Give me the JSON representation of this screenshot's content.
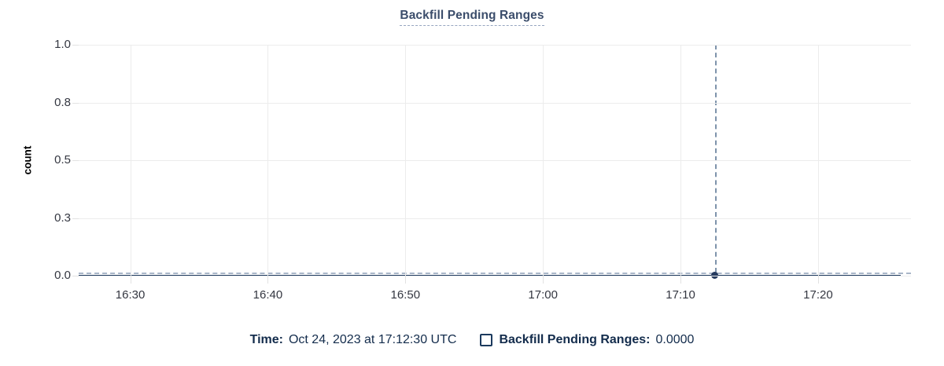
{
  "chart_data": {
    "type": "line",
    "title": "Backfill Pending Ranges",
    "ylabel": "count",
    "ylim": [
      0,
      1
    ],
    "grid": true,
    "legend_position": "bottom",
    "y_ticks": [
      {
        "value": 1.0,
        "label": "1.0"
      },
      {
        "value": 0.75,
        "label": "0.8"
      },
      {
        "value": 0.5,
        "label": "0.5"
      },
      {
        "value": 0.25,
        "label": "0.3"
      },
      {
        "value": 0.0,
        "label": "0.0"
      }
    ],
    "x_ticks": [
      {
        "time": "16:30",
        "label": "16:30"
      },
      {
        "time": "16:40",
        "label": "16:40"
      },
      {
        "time": "16:50",
        "label": "16:50"
      },
      {
        "time": "17:00",
        "label": "17:00"
      },
      {
        "time": "17:10",
        "label": "17:10"
      },
      {
        "time": "17:20",
        "label": "17:20"
      }
    ],
    "x_domain": [
      "16:26:15",
      "17:26:45"
    ],
    "series": [
      {
        "name": "Backfill Pending Ranges",
        "constant_value": 0.0,
        "start": "16:26:15",
        "end": "17:26:00",
        "color": "#1e3a5f"
      }
    ],
    "crosshair": {
      "time": "17:12:30",
      "value": 0.0
    }
  },
  "title": "Backfill Pending Ranges",
  "ylabel": "count",
  "legend": {
    "time_label": "Time:",
    "time_value": "Oct 24, 2023 at 17:12:30 UTC",
    "series_label": "Backfill Pending Ranges:",
    "series_value": "0.0000"
  },
  "colors": {
    "title": "#3b4d6b",
    "series_line": "#1e3a5f",
    "highlight_dot": "#253a5e",
    "crosshair_vertical": "#7e93ab",
    "crosshair_horizontal": "#a9b6c8",
    "gridline": "#ececec",
    "tick_label": "#343741",
    "legend_text": "#132c4c"
  }
}
